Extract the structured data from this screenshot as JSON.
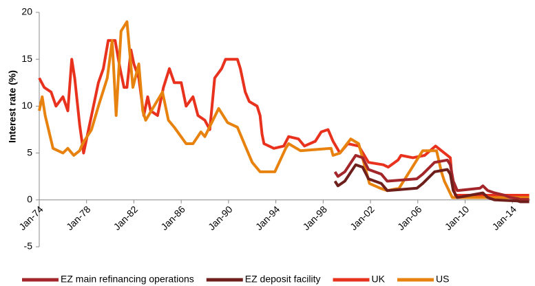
{
  "chart_data": {
    "type": "line",
    "y_label": "Interest rate (%)",
    "ylim": [
      -5,
      20
    ],
    "yticks": [
      -5,
      0,
      5,
      10,
      15,
      20
    ],
    "xlim": [
      "1974-01",
      "2015-07"
    ],
    "xticks": [
      {
        "value": "1974-01",
        "label": "Jan-74"
      },
      {
        "value": "1978-01",
        "label": "Jan-78"
      },
      {
        "value": "1982-01",
        "label": "Jan-82"
      },
      {
        "value": "1986-01",
        "label": "Jan-86"
      },
      {
        "value": "1990-01",
        "label": "Jan-90"
      },
      {
        "value": "1994-01",
        "label": "Jan-94"
      },
      {
        "value": "1998-01",
        "label": "Jan-98"
      },
      {
        "value": "2002-01",
        "label": "Jan-02"
      },
      {
        "value": "2006-01",
        "label": "Jan-06"
      },
      {
        "value": "2010-01",
        "label": "Jan-10"
      },
      {
        "value": "2014-01",
        "label": "Jan-14"
      }
    ],
    "series": [
      {
        "name": "EZ main refinancing operations",
        "color": "#a3262a",
        "x": [
          "1999-01",
          "1999-04",
          "1999-11",
          "2000-10",
          "2001-05",
          "2001-11",
          "2002-12",
          "2003-06",
          "2005-12",
          "2006-06",
          "2007-06",
          "2008-07",
          "2008-10",
          "2009-01",
          "2009-05",
          "2011-04",
          "2011-07",
          "2011-12",
          "2012-07",
          "2013-05",
          "2013-11",
          "2014-06",
          "2014-09",
          "2015-06"
        ],
        "values": [
          3,
          2.5,
          3,
          4.75,
          4.5,
          3.25,
          2.75,
          2,
          2.25,
          2.75,
          4,
          4.25,
          3.75,
          2,
          1,
          1.25,
          1.5,
          1,
          0.75,
          0.5,
          0.25,
          0.15,
          0.05,
          0.05
        ]
      },
      {
        "name": "EZ deposit facility",
        "color": "#6e1f1c",
        "x": [
          "1999-01",
          "1999-04",
          "1999-11",
          "2000-10",
          "2001-05",
          "2001-11",
          "2002-12",
          "2003-06",
          "2005-12",
          "2006-06",
          "2007-06",
          "2008-07",
          "2008-10",
          "2009-01",
          "2009-05",
          "2011-07",
          "2011-12",
          "2012-07",
          "2014-06",
          "2014-09",
          "2015-06"
        ],
        "values": [
          2,
          1.5,
          2,
          3.75,
          3.5,
          2.25,
          1.75,
          1,
          1.25,
          1.75,
          3,
          3.25,
          2.75,
          1,
          0.25,
          0.75,
          0.25,
          0,
          -0.1,
          -0.2,
          -0.2
        ]
      },
      {
        "name": "UK",
        "color": "#e8321e",
        "x": [
          "1974-01",
          "1974-06",
          "1975-01",
          "1975-06",
          "1976-01",
          "1976-06",
          "1976-10",
          "1977-01",
          "1977-06",
          "1977-10",
          "1978-06",
          "1979-01",
          "1979-06",
          "1979-11",
          "1980-06",
          "1980-11",
          "1981-03",
          "1981-06",
          "1981-10",
          "1982-01",
          "1982-06",
          "1982-11",
          "1983-03",
          "1983-06",
          "1984-01",
          "1984-07",
          "1985-01",
          "1985-06",
          "1986-01",
          "1986-06",
          "1987-01",
          "1987-06",
          "1988-01",
          "1988-06",
          "1988-11",
          "1989-06",
          "1989-10",
          "1990-10",
          "1991-01",
          "1991-06",
          "1991-10",
          "1992-06",
          "1992-09",
          "1992-11",
          "1993-01",
          "1993-11",
          "1994-09",
          "1995-02",
          "1995-12",
          "1996-06",
          "1997-05",
          "1997-11",
          "1998-06",
          "1998-11",
          "1999-06",
          "2000-02",
          "2001-01",
          "2001-11",
          "2003-02",
          "2003-07",
          "2004-05",
          "2004-08",
          "2005-08",
          "2006-08",
          "2007-07",
          "2008-04",
          "2008-10",
          "2008-12",
          "2009-03",
          "2015-06"
        ],
        "values": [
          13,
          12,
          11.5,
          10,
          11,
          9.5,
          15,
          13,
          8,
          5,
          9,
          12.5,
          14,
          17,
          17,
          14,
          12,
          12,
          16,
          14.5,
          13,
          9,
          11,
          9.5,
          9,
          12,
          14,
          12.5,
          12.5,
          10,
          11,
          9,
          8.5,
          7.5,
          13,
          14,
          15,
          15,
          14,
          11.5,
          10.5,
          10,
          9,
          7,
          6,
          5.5,
          5.75,
          6.75,
          6.5,
          5.75,
          6.25,
          7.25,
          7.5,
          6.25,
          5,
          6,
          5.75,
          4,
          3.75,
          3.5,
          4.25,
          4.75,
          4.5,
          4.75,
          5.75,
          5,
          4.5,
          2,
          0.5,
          0.5
        ]
      },
      {
        "name": "US",
        "color": "#e8820e",
        "x": [
          "1974-01",
          "1974-04",
          "1974-07",
          "1975-03",
          "1976-01",
          "1976-06",
          "1976-12",
          "1977-06",
          "1977-09",
          "1978-06",
          "1979-01",
          "1979-10",
          "1980-03",
          "1980-07",
          "1980-12",
          "1981-06",
          "1981-12",
          "1982-06",
          "1982-10",
          "1983-01",
          "1984-06",
          "1984-12",
          "1985-06",
          "1986-06",
          "1987-01",
          "1987-09",
          "1988-01",
          "1989-03",
          "1989-12",
          "1990-10",
          "1991-06",
          "1992-01",
          "1992-09",
          "1993-12",
          "1994-11",
          "1995-02",
          "1996-02",
          "1998-09",
          "1998-11",
          "1999-06",
          "2000-05",
          "2001-01",
          "2001-12",
          "2002-11",
          "2003-06",
          "2004-06",
          "2006-06",
          "2007-08",
          "2008-01",
          "2008-04",
          "2008-12",
          "2015-06"
        ],
        "values": [
          9.5,
          11,
          9,
          5.5,
          5,
          5.5,
          4.75,
          5.25,
          6,
          7.5,
          10,
          13,
          17,
          9,
          18,
          19,
          12,
          14.5,
          9.5,
          8.5,
          11.5,
          8.5,
          7.75,
          6,
          6,
          7.25,
          6.75,
          9.75,
          8.25,
          7.75,
          5.75,
          4,
          3,
          3,
          5.5,
          6,
          5.25,
          5.5,
          4.75,
          5,
          6.5,
          6,
          1.75,
          1.25,
          1,
          1.25,
          5.25,
          5.25,
          3,
          2,
          0.25,
          0.25
        ]
      }
    ]
  }
}
